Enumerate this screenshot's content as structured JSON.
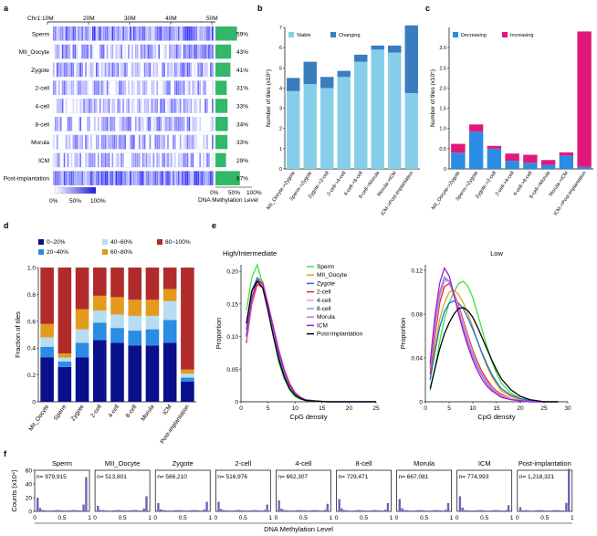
{
  "colors": {
    "light_blue": "#87CEEB",
    "steel_blue": "#3A7DBF",
    "magenta": "#E0197D",
    "green": "#32B868",
    "navy": "#0A0F8C",
    "blue2": "#2B8CE3",
    "pale_blue": "#B7DDF2",
    "orange": "#E39A1D",
    "red": "#B22B2B",
    "heat_dark": "#1A1ADB"
  },
  "panel_a": {
    "label": "a",
    "chr_label": "Chr1:",
    "ticks": [
      "10M",
      "20M",
      "30M",
      "40M",
      "50M"
    ],
    "rows": [
      {
        "name": "Sperm",
        "pct": "59%",
        "v": 0.59
      },
      {
        "name": "MII_Oocyte",
        "pct": "43%",
        "v": 0.43
      },
      {
        "name": "Zygote",
        "pct": "41%",
        "v": 0.41
      },
      {
        "name": "2-cell",
        "pct": "31%",
        "v": 0.31
      },
      {
        "name": "4-cell",
        "pct": "33%",
        "v": 0.33
      },
      {
        "name": "8-cell",
        "pct": "34%",
        "v": 0.34
      },
      {
        "name": "Morula",
        "pct": "33%",
        "v": 0.33
      },
      {
        "name": "ICM",
        "pct": "29%",
        "v": 0.29
      },
      {
        "name": "Post-implantation",
        "pct": "67%",
        "v": 0.67
      }
    ],
    "colorbar_ticks": [
      "0%",
      "50%",
      "100%"
    ],
    "level_ticks": [
      "0%",
      "50%",
      "100%"
    ],
    "level_label": "DNA Methylation Level"
  },
  "panel_b": {
    "label": "b",
    "type": "bar",
    "ylabel": "Number of tiles (x10⁵)",
    "ylim": [
      0,
      7
    ],
    "yticks": [
      "0",
      "1",
      "2",
      "3",
      "4",
      "5",
      "6",
      "7"
    ],
    "categories": [
      "MII_Oocyte->Zygote",
      "Sperm->Zygote",
      "Zygote->2-cell",
      "2-cell->4-cell",
      "4-cell->8-cell",
      "8-cell->Morula",
      "Morula->ICM",
      "ICM->Post-implantation"
    ],
    "series": [
      {
        "name": "Stable",
        "values": [
          3.85,
          4.2,
          4.0,
          4.55,
          5.3,
          5.9,
          5.75,
          3.75
        ]
      },
      {
        "name": "Changing",
        "values": [
          0.65,
          1.1,
          0.55,
          0.3,
          0.35,
          0.2,
          0.35,
          3.35
        ]
      }
    ]
  },
  "panel_c": {
    "label": "c",
    "type": "bar",
    "ylabel": "Number of tiles (x10⁵)",
    "ylim": [
      0,
      3.5
    ],
    "yticks": [
      "0",
      "0.5",
      "1.0",
      "1.5",
      "2.0",
      "2.5",
      "3.0"
    ],
    "categories": [
      "MII_Oocyte->Zygote",
      "Sperm->Zygote",
      "Zygote->2-cell",
      "2-cell->4-cell",
      "4-cell->8-cell",
      "8-cell->Morula",
      "Morula->ICM",
      "ICM->Post-implantation"
    ],
    "series": [
      {
        "name": "Decreasing",
        "values": [
          0.4,
          0.92,
          0.5,
          0.2,
          0.15,
          0.1,
          0.33,
          0.05
        ]
      },
      {
        "name": "Increasing",
        "values": [
          0.22,
          0.18,
          0.07,
          0.18,
          0.2,
          0.12,
          0.08,
          3.35
        ]
      }
    ]
  },
  "panel_d": {
    "label": "d",
    "type": "bar",
    "ylabel": "Fraction of tiles",
    "ylim": [
      0,
      1.0
    ],
    "yticks": [
      "0",
      "0.2",
      "0.4",
      "0.6",
      "0.8",
      "1.0"
    ],
    "categories": [
      "MII_Oocyte",
      "Sperm",
      "Zygote",
      "2-cell",
      "4-cell",
      "8-cell",
      "Morula",
      "ICM",
      "Post-implantation"
    ],
    "series": [
      {
        "name": "0~20%",
        "values": [
          0.33,
          0.26,
          0.33,
          0.46,
          0.44,
          0.42,
          0.42,
          0.44,
          0.15
        ]
      },
      {
        "name": "20~40%",
        "values": [
          0.08,
          0.04,
          0.11,
          0.13,
          0.11,
          0.11,
          0.12,
          0.17,
          0.03
        ]
      },
      {
        "name": "40~60%",
        "values": [
          0.07,
          0.03,
          0.1,
          0.09,
          0.1,
          0.11,
          0.1,
          0.14,
          0.03
        ]
      },
      {
        "name": "60~80%",
        "values": [
          0.1,
          0.03,
          0.15,
          0.11,
          0.13,
          0.12,
          0.12,
          0.09,
          0.03
        ]
      },
      {
        "name": "80~100%",
        "values": [
          0.42,
          0.64,
          0.31,
          0.21,
          0.22,
          0.24,
          0.24,
          0.16,
          0.76
        ]
      }
    ]
  },
  "panel_e": {
    "label": "e",
    "type": "line",
    "ylabel": "Proportion",
    "xlabel": "CpG density",
    "legend": [
      "Sperm",
      "MII_Oocyte",
      "Zygote",
      "2-cell",
      "4-cell",
      "8-cell",
      "Morula",
      "ICM",
      "Post-implantation"
    ],
    "legend_colors": [
      "#3AE33A",
      "#DAA520",
      "#1E6FD9",
      "#E32222",
      "#F2A0C8",
      "#6FA8E3",
      "#B478C8",
      "#9B1FD9",
      "#000000"
    ],
    "high": {
      "title": "High/Intermediate",
      "xlim": [
        0,
        25
      ],
      "xticks": [
        "0",
        "5",
        "10",
        "15",
        "20",
        "25"
      ],
      "ylim": [
        0,
        0.21
      ],
      "yticks": [
        "0",
        "0.05",
        "0.10",
        "0.15",
        "0.20"
      ],
      "x": [
        1,
        2,
        3,
        4,
        5,
        6,
        7,
        8,
        9,
        10,
        11,
        12,
        14,
        16,
        18,
        20,
        22,
        25
      ],
      "series": [
        {
          "name": "Sperm",
          "values": [
            0.14,
            0.19,
            0.21,
            0.18,
            0.14,
            0.1,
            0.06,
            0.035,
            0.018,
            0.008,
            0.004,
            0.002,
            0.001,
            0,
            0,
            0,
            0,
            0
          ]
        },
        {
          "name": "MII_Oocyte",
          "values": [
            0.1,
            0.16,
            0.19,
            0.185,
            0.15,
            0.11,
            0.075,
            0.045,
            0.025,
            0.012,
            0.006,
            0.003,
            0.001,
            0,
            0,
            0,
            0,
            0
          ]
        },
        {
          "name": "Zygote",
          "values": [
            0.11,
            0.17,
            0.19,
            0.18,
            0.145,
            0.105,
            0.07,
            0.04,
            0.02,
            0.01,
            0.005,
            0.002,
            0.001,
            0,
            0,
            0,
            0,
            0
          ]
        },
        {
          "name": "2-cell",
          "values": [
            0.09,
            0.15,
            0.18,
            0.175,
            0.15,
            0.115,
            0.08,
            0.05,
            0.028,
            0.014,
            0.007,
            0.003,
            0.001,
            0,
            0,
            0,
            0,
            0
          ]
        },
        {
          "name": "4-cell",
          "values": [
            0.095,
            0.155,
            0.185,
            0.178,
            0.15,
            0.112,
            0.078,
            0.048,
            0.026,
            0.013,
            0.006,
            0.003,
            0.001,
            0,
            0,
            0,
            0,
            0
          ]
        },
        {
          "name": "8-cell",
          "values": [
            0.1,
            0.16,
            0.185,
            0.18,
            0.148,
            0.11,
            0.075,
            0.046,
            0.025,
            0.012,
            0.006,
            0.003,
            0.001,
            0,
            0,
            0,
            0,
            0
          ]
        },
        {
          "name": "Morula",
          "values": [
            0.1,
            0.16,
            0.187,
            0.18,
            0.147,
            0.108,
            0.074,
            0.045,
            0.024,
            0.012,
            0.006,
            0.003,
            0.001,
            0,
            0,
            0,
            0,
            0
          ]
        },
        {
          "name": "ICM",
          "values": [
            0.1,
            0.158,
            0.185,
            0.182,
            0.15,
            0.112,
            0.077,
            0.047,
            0.026,
            0.013,
            0.006,
            0.003,
            0.001,
            0,
            0,
            0,
            0,
            0
          ]
        },
        {
          "name": "Post-implantation",
          "values": [
            0.12,
            0.17,
            0.185,
            0.175,
            0.14,
            0.1,
            0.065,
            0.038,
            0.02,
            0.01,
            0.005,
            0.002,
            0.001,
            0,
            0,
            0,
            0,
            0
          ]
        }
      ]
    },
    "low": {
      "title": "Low",
      "xlim": [
        0,
        30
      ],
      "xticks": [
        "0",
        "5",
        "10",
        "15",
        "20",
        "25",
        "30"
      ],
      "ylim": [
        0,
        0.125
      ],
      "yticks": [
        "0",
        "0.04",
        "0.08",
        "0.12"
      ],
      "x": [
        1,
        2,
        3,
        4,
        5,
        6,
        7,
        8,
        9,
        10,
        11,
        12,
        13,
        14,
        15,
        16,
        18,
        20,
        22,
        25,
        28
      ],
      "series": [
        {
          "name": "Sperm",
          "values": [
            0.01,
            0.03,
            0.055,
            0.075,
            0.09,
            0.1,
            0.108,
            0.11,
            0.105,
            0.095,
            0.08,
            0.065,
            0.05,
            0.037,
            0.026,
            0.017,
            0.008,
            0.003,
            0.001,
            0,
            0
          ]
        },
        {
          "name": "MII_Oocyte",
          "values": [
            0.02,
            0.05,
            0.075,
            0.09,
            0.1,
            0.102,
            0.098,
            0.09,
            0.08,
            0.068,
            0.055,
            0.043,
            0.032,
            0.023,
            0.016,
            0.01,
            0.005,
            0.002,
            0.001,
            0,
            0
          ]
        },
        {
          "name": "Zygote",
          "values": [
            0.02,
            0.045,
            0.068,
            0.082,
            0.09,
            0.092,
            0.09,
            0.085,
            0.076,
            0.066,
            0.055,
            0.044,
            0.034,
            0.025,
            0.018,
            0.012,
            0.006,
            0.003,
            0.001,
            0,
            0
          ]
        },
        {
          "name": "2-cell",
          "values": [
            0.025,
            0.06,
            0.09,
            0.105,
            0.108,
            0.1,
            0.088,
            0.074,
            0.06,
            0.047,
            0.036,
            0.027,
            0.02,
            0.014,
            0.01,
            0.007,
            0.003,
            0.001,
            0,
            0,
            0
          ]
        },
        {
          "name": "4-cell",
          "values": [
            0.03,
            0.065,
            0.095,
            0.11,
            0.11,
            0.1,
            0.086,
            0.072,
            0.058,
            0.045,
            0.034,
            0.025,
            0.018,
            0.013,
            0.009,
            0.006,
            0.003,
            0.001,
            0,
            0,
            0
          ]
        },
        {
          "name": "8-cell",
          "values": [
            0.03,
            0.068,
            0.098,
            0.112,
            0.11,
            0.098,
            0.083,
            0.069,
            0.055,
            0.043,
            0.032,
            0.024,
            0.017,
            0.012,
            0.008,
            0.005,
            0.002,
            0.001,
            0,
            0,
            0
          ]
        },
        {
          "name": "Morula",
          "values": [
            0.032,
            0.07,
            0.1,
            0.114,
            0.11,
            0.097,
            0.082,
            0.067,
            0.053,
            0.041,
            0.031,
            0.023,
            0.016,
            0.011,
            0.008,
            0.005,
            0.002,
            0.001,
            0,
            0,
            0
          ]
        },
        {
          "name": "ICM",
          "values": [
            0.035,
            0.078,
            0.108,
            0.122,
            0.115,
            0.098,
            0.08,
            0.064,
            0.05,
            0.038,
            0.028,
            0.02,
            0.014,
            0.01,
            0.007,
            0.004,
            0.002,
            0.001,
            0,
            0,
            0
          ]
        },
        {
          "name": "Post-implantation",
          "values": [
            0.012,
            0.03,
            0.048,
            0.062,
            0.072,
            0.08,
            0.085,
            0.086,
            0.083,
            0.077,
            0.068,
            0.058,
            0.048,
            0.038,
            0.029,
            0.021,
            0.011,
            0.005,
            0.002,
            0,
            0
          ]
        }
      ]
    }
  },
  "panel_f": {
    "label": "f",
    "ylabel": "Counts (x10⁴)",
    "xlabel": "DNA Methylation Level",
    "yticks": [
      "0",
      "20",
      "40",
      "60"
    ],
    "xticks": [
      "0",
      "0.5",
      "1"
    ],
    "panels": [
      {
        "name": "Sperm",
        "n": "n= 979,915",
        "left": 20,
        "right": 50
      },
      {
        "name": "MII_Oocyte",
        "n": "n= 513,801",
        "left": 8,
        "right": 22
      },
      {
        "name": "Zygote",
        "n": "n= 566,210",
        "left": 12,
        "right": 14
      },
      {
        "name": "2-cell",
        "n": "n= 516,976",
        "left": 14,
        "right": 10
      },
      {
        "name": "4-cell",
        "n": "n= 662,307",
        "left": 16,
        "right": 11
      },
      {
        "name": "8-cell",
        "n": "n= 729,471",
        "left": 18,
        "right": 12
      },
      {
        "name": "Morula",
        "n": "n= 667,081",
        "left": 18,
        "right": 12
      },
      {
        "name": "ICM",
        "n": "n= 774,993",
        "left": 22,
        "right": 9
      },
      {
        "name": "Post-implantation",
        "n": "n= 1,218,321",
        "left": 6,
        "right": 62
      }
    ]
  }
}
